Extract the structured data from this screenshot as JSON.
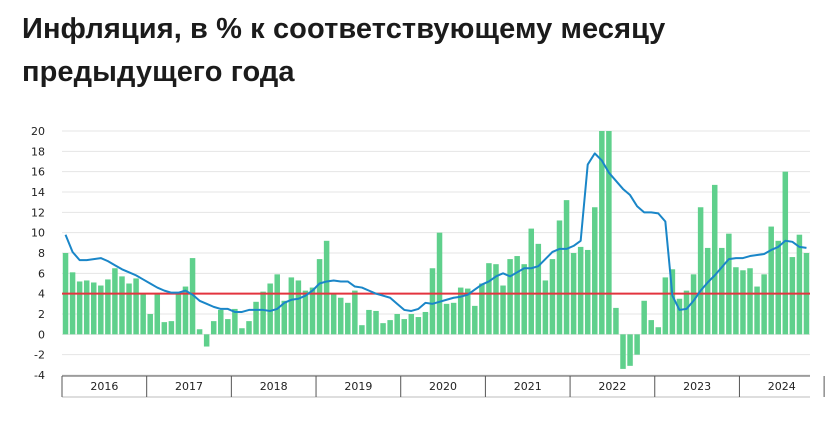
{
  "title": "Инфляция, в % к соответствующему месяцу предыдущего года",
  "colors": {
    "bars": "#5fd08c",
    "line": "#1a86c8",
    "target": "#e3343f",
    "grid": "#e4e4e4",
    "axis": "#555555"
  },
  "chart_data": {
    "type": "bar",
    "title": "Инфляция, в % к соответствующему месяцу предыдущего года",
    "xlabel": "",
    "ylabel": "",
    "ylim": [
      -4,
      20
    ],
    "yticks": [
      -4,
      -2,
      0,
      2,
      4,
      6,
      8,
      10,
      12,
      14,
      16,
      18,
      20
    ],
    "grid": true,
    "legend": "none",
    "years": [
      "2016",
      "2017",
      "2018",
      "2019",
      "2020",
      "2021",
      "2022",
      "2023",
      "2024"
    ],
    "reference_line": 4,
    "series": [
      {
        "type": "bar",
        "values": [
          8.0,
          6.1,
          5.2,
          5.3,
          5.1,
          4.8,
          5.4,
          6.5,
          5.7,
          5.0,
          5.5,
          4.0,
          2.0,
          4.0,
          1.2,
          1.3,
          4.1,
          4.7,
          7.5,
          0.5,
          -1.2,
          1.3,
          2.4,
          1.5,
          2.5,
          0.6,
          1.3,
          3.2,
          4.2,
          5.0,
          5.9,
          3.3,
          5.6,
          5.3,
          4.3,
          4.6,
          7.4,
          9.2,
          4.0,
          3.6,
          3.1,
          4.3,
          0.9,
          2.4,
          2.3,
          1.1,
          1.4,
          2.0,
          1.5,
          2.0,
          1.7,
          2.2,
          6.5,
          10.0,
          3.0,
          3.1,
          4.6,
          4.5,
          2.8,
          5.0,
          7.0,
          6.9,
          4.8,
          7.4,
          7.7,
          6.9,
          10.4,
          8.9,
          5.3,
          7.4,
          11.2,
          13.2,
          8.0,
          8.6,
          8.3,
          12.5,
          20.0,
          20.0,
          2.6,
          -3.4,
          -3.1,
          -2.0,
          3.3,
          1.4,
          0.7,
          5.6,
          6.4,
          3.5,
          4.3,
          5.9,
          12.5,
          8.5,
          14.7,
          8.5,
          9.9,
          6.6,
          6.3,
          6.5,
          4.7,
          5.9,
          10.6,
          9.2,
          16.0,
          7.6,
          9.8,
          8.0
        ]
      },
      {
        "type": "line",
        "values": [
          9.8,
          8.1,
          7.3,
          7.3,
          7.4,
          7.5,
          7.2,
          6.8,
          6.4,
          6.1,
          5.8,
          5.4,
          5.0,
          4.6,
          4.3,
          4.1,
          4.1,
          4.3,
          3.9,
          3.3,
          3.0,
          2.7,
          2.5,
          2.5,
          2.2,
          2.2,
          2.4,
          2.4,
          2.4,
          2.3,
          2.5,
          3.1,
          3.4,
          3.5,
          3.8,
          4.3,
          5.0,
          5.2,
          5.3,
          5.2,
          5.2,
          4.7,
          4.6,
          4.3,
          4.0,
          3.8,
          3.6,
          3.0,
          2.4,
          2.3,
          2.5,
          3.1,
          3.0,
          3.2,
          3.4,
          3.6,
          3.7,
          3.9,
          4.4,
          4.9,
          5.2,
          5.7,
          6.0,
          5.7,
          6.1,
          6.5,
          6.5,
          6.7,
          7.4,
          8.1,
          8.4,
          8.4,
          8.7,
          9.2,
          16.7,
          17.8,
          17.1,
          15.9,
          15.1,
          14.3,
          13.7,
          12.6,
          12.0,
          12.0,
          11.9,
          11.1,
          3.8,
          2.4,
          2.5,
          3.3,
          4.3,
          5.1,
          5.8,
          6.6,
          7.4,
          7.5,
          7.5,
          7.7,
          7.8,
          7.9,
          8.3,
          8.6,
          9.2,
          9.1,
          8.6,
          8.5
        ]
      }
    ]
  }
}
